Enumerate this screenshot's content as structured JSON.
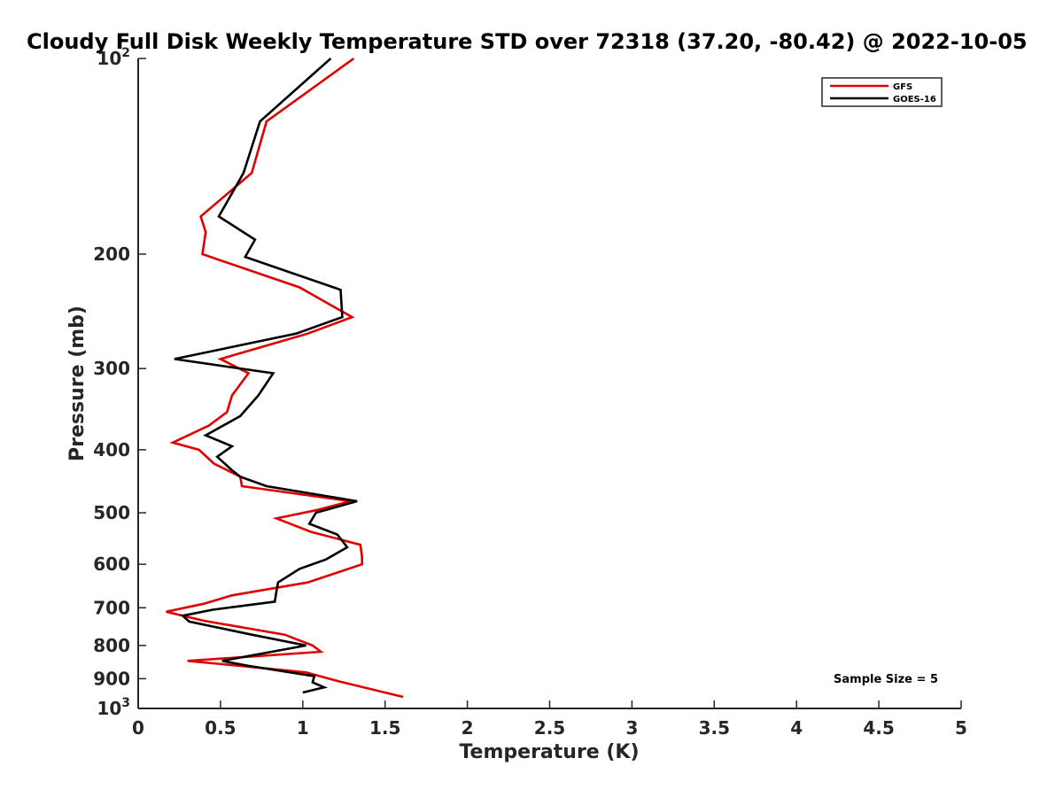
{
  "chart_data": {
    "type": "line",
    "title": "Cloudy Full Disk Weekly Temperature STD over 72318 (37.20, -80.42) @ 2022-10-05",
    "xlabel": "Temperature (K)",
    "ylabel": "Pressure (mb)",
    "xlim": [
      0,
      5
    ],
    "ylim": [
      100,
      1000
    ],
    "yscale": "log",
    "y_reversed": true,
    "x_ticks": [
      {
        "value": 0,
        "label": "0"
      },
      {
        "value": 0.5,
        "label": "0.5"
      },
      {
        "value": 1,
        "label": "1"
      },
      {
        "value": 1.5,
        "label": "1.5"
      },
      {
        "value": 2,
        "label": "2"
      },
      {
        "value": 2.5,
        "label": "2.5"
      },
      {
        "value": 3,
        "label": "3"
      },
      {
        "value": 3.5,
        "label": "3.5"
      },
      {
        "value": 4,
        "label": "4"
      },
      {
        "value": 4.5,
        "label": "4.5"
      },
      {
        "value": 5,
        "label": "5"
      }
    ],
    "y_ticks": [
      {
        "value": 100,
        "base": "10",
        "exp": "2"
      },
      {
        "value": 200,
        "label": "200"
      },
      {
        "value": 300,
        "label": "300"
      },
      {
        "value": 400,
        "label": "400"
      },
      {
        "value": 500,
        "label": "500"
      },
      {
        "value": 600,
        "label": "600"
      },
      {
        "value": 700,
        "label": "700"
      },
      {
        "value": 800,
        "label": "800"
      },
      {
        "value": 900,
        "label": "900"
      },
      {
        "value": 1000,
        "base": "10",
        "exp": "3"
      }
    ],
    "legend_position": "top-right",
    "annotation": "Sample Size = 5",
    "series": [
      {
        "name": "GFS",
        "color": "#e00000",
        "points": [
          [
            1.31,
            100
          ],
          [
            0.78,
            125
          ],
          [
            0.69,
            150
          ],
          [
            0.38,
            175
          ],
          [
            0.41,
            185
          ],
          [
            0.39,
            200
          ],
          [
            0.98,
            225
          ],
          [
            1.3,
            250
          ],
          [
            1.03,
            265
          ],
          [
            0.5,
            290
          ],
          [
            0.67,
            305
          ],
          [
            0.57,
            330
          ],
          [
            0.54,
            350
          ],
          [
            0.43,
            367
          ],
          [
            0.21,
            390
          ],
          [
            0.37,
            400
          ],
          [
            0.46,
            420
          ],
          [
            0.62,
            440
          ],
          [
            0.63,
            455
          ],
          [
            1.29,
            480
          ],
          [
            1.09,
            495
          ],
          [
            0.84,
            510
          ],
          [
            1.05,
            535
          ],
          [
            1.35,
            560
          ],
          [
            1.36,
            585
          ],
          [
            1.36,
            600
          ],
          [
            1.03,
            640
          ],
          [
            0.57,
            670
          ],
          [
            0.4,
            690
          ],
          [
            0.17,
            710
          ],
          [
            0.4,
            733
          ],
          [
            0.89,
            770
          ],
          [
            1.06,
            800
          ],
          [
            1.11,
            818
          ],
          [
            0.3,
            845
          ],
          [
            0.62,
            860
          ],
          [
            1.02,
            880
          ],
          [
            1.23,
            910
          ],
          [
            1.61,
            960
          ]
        ]
      },
      {
        "name": "GOES-16",
        "color": "#000000",
        "points": [
          [
            1.17,
            100
          ],
          [
            0.74,
            125
          ],
          [
            0.64,
            150
          ],
          [
            0.49,
            175
          ],
          [
            0.71,
            190
          ],
          [
            0.65,
            202
          ],
          [
            1.23,
            227
          ],
          [
            1.24,
            250
          ],
          [
            0.96,
            265
          ],
          [
            0.22,
            290
          ],
          [
            0.82,
            305
          ],
          [
            0.73,
            330
          ],
          [
            0.62,
            355
          ],
          [
            0.41,
            380
          ],
          [
            0.57,
            395
          ],
          [
            0.48,
            410
          ],
          [
            0.57,
            430
          ],
          [
            0.62,
            440
          ],
          [
            0.78,
            455
          ],
          [
            1.33,
            480
          ],
          [
            1.08,
            500
          ],
          [
            1.04,
            520
          ],
          [
            1.21,
            540
          ],
          [
            1.27,
            565
          ],
          [
            1.14,
            590
          ],
          [
            0.98,
            610
          ],
          [
            0.85,
            640
          ],
          [
            0.84,
            660
          ],
          [
            0.83,
            685
          ],
          [
            0.45,
            705
          ],
          [
            0.27,
            720
          ],
          [
            0.31,
            735
          ],
          [
            0.69,
            770
          ],
          [
            1.02,
            800
          ],
          [
            0.51,
            845
          ],
          [
            0.67,
            860
          ],
          [
            1.07,
            892
          ],
          [
            1.06,
            912
          ],
          [
            1.13,
            928
          ],
          [
            1.0,
            945
          ]
        ]
      }
    ]
  }
}
